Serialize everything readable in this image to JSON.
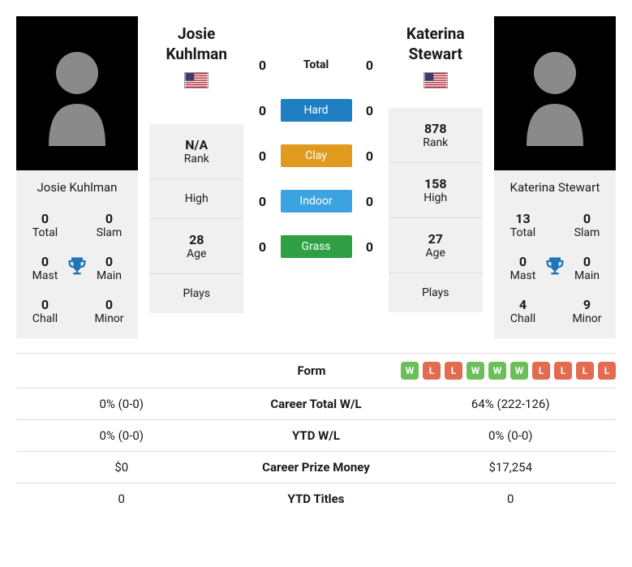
{
  "colors": {
    "hard": "#1e7fc2",
    "clay": "#e09b1e",
    "indoor": "#3ba3e0",
    "grass": "#2ea043",
    "win": "#6bbf59",
    "loss": "#e36b4f",
    "trophy": "#2176b8",
    "cardBg": "#f0f0f0"
  },
  "surfaces": {
    "total_label": "Total",
    "hard_label": "Hard",
    "clay_label": "Clay",
    "indoor_label": "Indoor",
    "grass_label": "Grass"
  },
  "h2h": {
    "total": {
      "p1": "0",
      "p2": "0"
    },
    "hard": {
      "p1": "0",
      "p2": "0"
    },
    "clay": {
      "p1": "0",
      "p2": "0"
    },
    "indoor": {
      "p1": "0",
      "p2": "0"
    },
    "grass": {
      "p1": "0",
      "p2": "0"
    }
  },
  "labels": {
    "rank": "Rank",
    "high": "High",
    "age": "Age",
    "plays": "Plays",
    "total": "Total",
    "slam": "Slam",
    "mast": "Mast",
    "main": "Main",
    "chall": "Chall",
    "minor": "Minor"
  },
  "p1": {
    "name": "Josie Kuhlman",
    "name_first": "Josie",
    "name_last": "Kuhlman",
    "flag": "us",
    "rank": "N/A",
    "high": "",
    "age": "28",
    "plays": "",
    "titles": {
      "total": "0",
      "slam": "0",
      "mast": "0",
      "main": "0",
      "chall": "0",
      "minor": "0"
    }
  },
  "p2": {
    "name": "Katerina Stewart",
    "name_first": "Katerina",
    "name_last": "Stewart",
    "flag": "us",
    "rank": "878",
    "high": "158",
    "age": "27",
    "plays": "",
    "titles": {
      "total": "13",
      "slam": "0",
      "mast": "0",
      "main": "0",
      "chall": "4",
      "minor": "9"
    }
  },
  "compare": {
    "form": {
      "label": "Form",
      "p1": [],
      "p2": [
        "W",
        "L",
        "L",
        "W",
        "W",
        "W",
        "L",
        "L",
        "L",
        "L"
      ]
    },
    "career_wl": {
      "label": "Career Total W/L",
      "p1": "0% (0-0)",
      "p2": "64% (222-126)"
    },
    "ytd_wl": {
      "label": "YTD W/L",
      "p1": "0% (0-0)",
      "p2": "0% (0-0)"
    },
    "prize": {
      "label": "Career Prize Money",
      "p1": "$0",
      "p2": "$17,254"
    },
    "ytd_titles": {
      "label": "YTD Titles",
      "p1": "0",
      "p2": "0"
    }
  }
}
